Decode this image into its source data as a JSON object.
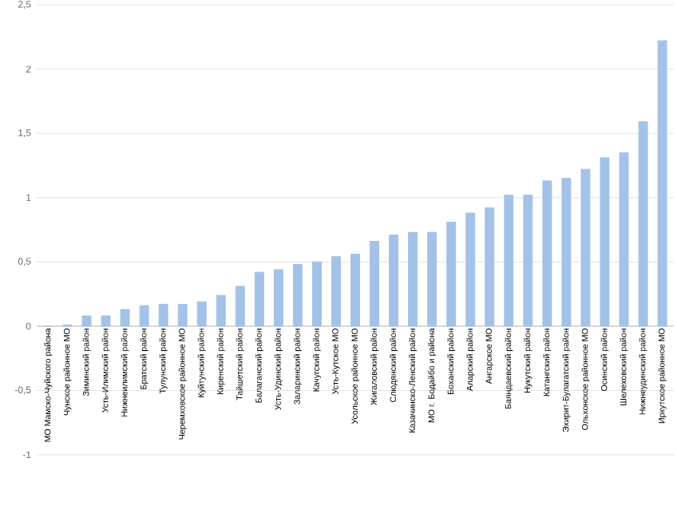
{
  "chart_data": {
    "type": "bar",
    "categories": [
      "МО Мамско-Чуйского района",
      "Чунское районное МО",
      "Зиминский район",
      "Усть-Илимский  район",
      "Нижнеилимский район",
      "Братский район",
      "Тулунский район",
      "Черемховское районное МО",
      "Куйтунский район",
      "Киренский район",
      "Тайшетский район",
      "Балаганский район",
      "Усть-Удинский  район",
      "Заларинский район",
      "Качугский район",
      "Усть-Кутское МО",
      "Усольское районное МО",
      "Жигаловский район",
      "Слюдянский район",
      "Казачинско-Ленский район",
      "МО г. Бодайбо и района",
      "Боханский район",
      "Аларский район",
      "Ангарское МО",
      "Баяндаевский район",
      "Нукутский район",
      "Катангский район",
      "Эхирит-Булагатский район",
      "Ольхонское районное МО",
      "Осинский район",
      "Шелеховский район",
      "Нижнеудинский район",
      "Иркутское районное МО"
    ],
    "values": [
      0,
      0.01,
      0.08,
      0.08,
      0.13,
      0.16,
      0.17,
      0.17,
      0.19,
      0.24,
      0.31,
      0.42,
      0.44,
      0.48,
      0.5,
      0.54,
      0.56,
      0.66,
      0.71,
      0.73,
      0.73,
      0.81,
      0.88,
      0.92,
      1.02,
      1.02,
      1.13,
      1.15,
      1.22,
      1.31,
      1.35,
      1.59,
      2.22
    ],
    "color": "#a4c2e8",
    "ylim": [
      -1,
      2.5
    ],
    "yticks": [
      {
        "value": -1,
        "label": "-1"
      },
      {
        "value": -0.5,
        "label": "-0,5"
      },
      {
        "value": 0,
        "label": "0"
      },
      {
        "value": 0.5,
        "label": "0,5"
      },
      {
        "value": 1,
        "label": "1"
      },
      {
        "value": 1.5,
        "label": "1,5"
      },
      {
        "value": 2,
        "label": "2"
      },
      {
        "value": 2.5,
        "label": "2,5"
      }
    ],
    "grid": "y"
  }
}
